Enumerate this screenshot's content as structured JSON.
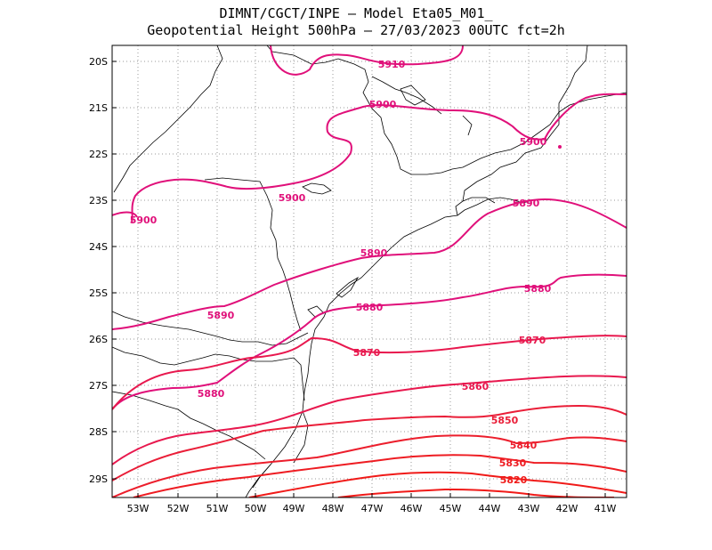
{
  "title_line1": "DIMNT/CGCT/INPE –  Model Eta05_M01_",
  "title_line2": "Geopotential Height 500hPa –  27/03/2023 00UTC fct=2h",
  "lat_labels": [
    "20S",
    "21S",
    "22S",
    "23S",
    "24S",
    "25S",
    "26S",
    "27S",
    "28S",
    "29S"
  ],
  "lon_labels": [
    "53W",
    "52W",
    "51W",
    "50W",
    "49W",
    "48W",
    "47W",
    "46W",
    "45W",
    "44W",
    "43W",
    "42W",
    "41W"
  ],
  "contour_labels": [
    {
      "value": "5910",
      "color": "#e0107a"
    },
    {
      "value": "5900",
      "color": "#e0107a"
    },
    {
      "value": "5900",
      "color": "#e0107a"
    },
    {
      "value": "5900",
      "color": "#e0107a"
    },
    {
      "value": "5900",
      "color": "#e0107a"
    },
    {
      "value": "5890",
      "color": "#e0107a"
    },
    {
      "value": "5890",
      "color": "#e0107a"
    },
    {
      "value": "5890",
      "color": "#e0107a"
    },
    {
      "value": "5880",
      "color": "#e0107a"
    },
    {
      "value": "5880",
      "color": "#e0107a"
    },
    {
      "value": "5880",
      "color": "#e0107a"
    },
    {
      "value": "5870",
      "color": "#e8184e"
    },
    {
      "value": "5870",
      "color": "#e8184e"
    },
    {
      "value": "5860",
      "color": "#e8184e"
    },
    {
      "value": "5850",
      "color": "#ea1e38"
    },
    {
      "value": "5840",
      "color": "#ec1e2c"
    },
    {
      "value": "5830",
      "color": "#ee1c22"
    },
    {
      "value": "5820",
      "color": "#f01a18"
    }
  ],
  "colors": {
    "frame": "#000000",
    "grid": "#9a9a9a",
    "coast": "#000000",
    "pink_high": "#e0107a",
    "red_low": "#f01a18"
  }
}
